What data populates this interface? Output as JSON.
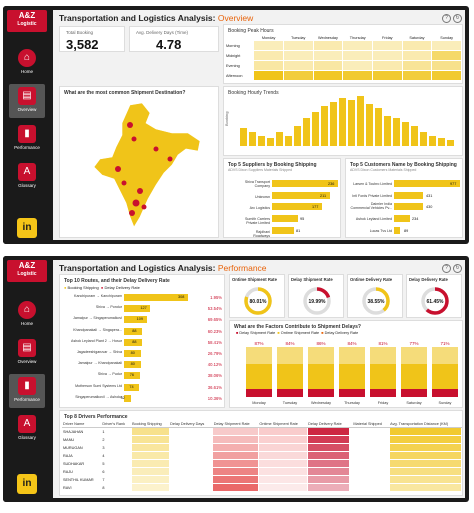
{
  "dash1": {
    "logo": {
      "line1": "A&Z",
      "line2": "Logistic"
    },
    "title": "Transportation and Logistics Analysis:",
    "subtitle": "Overview",
    "nav": [
      {
        "label": "Home",
        "icon": "home-icon",
        "glyph": "⌂"
      },
      {
        "label": "Overview",
        "icon": "overview-icon",
        "glyph": "▤"
      },
      {
        "label": "Performance",
        "icon": "performance-icon",
        "glyph": "▮"
      },
      {
        "label": "Glossary",
        "icon": "glossary-icon",
        "glyph": "A"
      }
    ],
    "linkedin": "in",
    "kpi_total": {
      "label": "Total Booking",
      "value": "3,582"
    },
    "kpi_delivery": {
      "label": "Avg. Delivery Days (Time)",
      "value": "4.78"
    },
    "peak_hours": {
      "title": "Booking Peak Hours",
      "days": [
        "Monday",
        "Tuesday",
        "Wednesday",
        "Thursday",
        "Friday",
        "Saturday",
        "Sunday"
      ],
      "rows": [
        {
          "name": "Morning",
          "levels": [
            0.3,
            0.3,
            0.35,
            0.3,
            0.3,
            0.35,
            0.3
          ]
        },
        {
          "name": "Midnight",
          "levels": [
            0.35,
            0.3,
            0.3,
            0.3,
            0.3,
            0.35,
            0.65
          ]
        },
        {
          "name": "Evening",
          "levels": [
            0.4,
            0.35,
            0.4,
            0.3,
            0.35,
            0.45,
            0.5
          ]
        },
        {
          "name": "Afternoon",
          "levels": [
            1,
            0.85,
            0.95,
            0.9,
            0.9,
            0.85,
            0.9
          ]
        }
      ]
    },
    "map": {
      "title": "What are the most common Shipment Destination?"
    },
    "booking_trends": {
      "title": "Booking Hourly Trends",
      "ylabel": "Booking"
    },
    "suppliers": {
      "title": "Top 5 Suppliers by Booking Shipping",
      "subtitle": "ADVS Dixon Suppliers Materials Shipped"
    },
    "customers": {
      "title": "Top 5 Customers Name by Booking Shipping",
      "subtitle": "ADVS Dixon Customers Materials Shipped"
    }
  },
  "dash2": {
    "logo": {
      "line1": "A&Z",
      "line2": "Logistic"
    },
    "title": "Transportation and Logistics Analysis:",
    "subtitle": "Performance",
    "nav": [
      {
        "label": "Home",
        "icon": "home-icon",
        "glyph": "⌂"
      },
      {
        "label": "Overview",
        "icon": "overview-icon",
        "glyph": "▤"
      },
      {
        "label": "Performance",
        "icon": "performance-icon",
        "glyph": "▮"
      },
      {
        "label": "Glossary",
        "icon": "glossary-icon",
        "glyph": "A"
      }
    ],
    "linkedin": "in",
    "routes": {
      "title": "Top 10 Routes, and their Delay Delivery Rate",
      "legend": [
        "Booking Shipping",
        "Delay Delivery Rate"
      ],
      "rows": [
        {
          "route": "Kanchipuram → Kanchipuram",
          "count": 308,
          "rate": "1.95%"
        },
        {
          "route": "Shiva → Pondur",
          "count": 127,
          "rate": "53.54%"
        },
        {
          "route": "Jamalpur → Singaperumalkovi",
          "count": 109,
          "rate": "69.65%"
        },
        {
          "route": "Khandpanakali → Singapera...",
          "count": 88,
          "rate": "60.23%"
        },
        {
          "route": "Ashok Leyland Plant 2 → Hosur",
          "count": 88,
          "rate": "58.41%"
        },
        {
          "route": "Jagadeeshigaruvar → Shiva",
          "count": 80,
          "rate": "26.79%"
        },
        {
          "route": "Jamalpur → Khandpanakali",
          "count": 80,
          "rate": "40.12%"
        },
        {
          "route": "Shiva → Pudur",
          "count": 76,
          "rate": "38.06%"
        },
        {
          "route": "Motherson Sumi Systems Ltd",
          "count": 74,
          "rate": "36.61%"
        },
        {
          "route": "Singaperumalkovil → Ashoka",
          "count": 32,
          "rate": "10.36%"
        }
      ]
    },
    "rings": [
      {
        "label": "Ontime Shipment Rate",
        "value": "80.01%",
        "frac": 0.8001
      },
      {
        "label": "Delay Shipment Rate",
        "value": "19.99%",
        "frac": 0.1999
      },
      {
        "label": "Ontime Delivery Rate",
        "value": "38.55%",
        "frac": 0.3855
      },
      {
        "label": "Delay Delivery Rate",
        "value": "61.45%",
        "frac": 0.6145
      }
    ],
    "factors": {
      "title": "What are the Factors Contribute to Shipment Delays?",
      "legend": [
        "Delay Shipment Rate",
        "Ontime Shipment Rate",
        "Delay Delivery Rate"
      ],
      "cols": [
        {
          "day": "Monday",
          "top": "87%",
          "ontime": 0.87
        },
        {
          "day": "Tuesday",
          "top": "84%",
          "ontime": 0.84
        },
        {
          "day": "Wednesday",
          "top": "86%",
          "ontime": 0.86
        },
        {
          "day": "Thursday",
          "top": "84%",
          "ontime": 0.84
        },
        {
          "day": "Friday",
          "top": "81%",
          "ontime": 0.81
        },
        {
          "day": "Saturday",
          "top": "77%",
          "ontime": 0.77
        },
        {
          "day": "Sunday",
          "top": "71%",
          "ontime": 0.71
        }
      ]
    },
    "drivers": {
      "title": "Top 8 Drivers Performance",
      "headers": [
        "Driver Name",
        "Driver's Rank",
        "Booking Shipping",
        "Delay Delivery Days",
        "Delay Shipment Rate",
        "Ontime Shipment Rate",
        "Delay Delivery Rate",
        "",
        "Material Shipped",
        "Avg. Transportation Distance (KM)"
      ],
      "rows": [
        {
          "name": "SHAJAHAN",
          "rank": "1"
        },
        {
          "name": "MANU",
          "rank": "2"
        },
        {
          "name": "MURUGAN",
          "rank": "3"
        },
        {
          "name": "RAJA",
          "rank": "4"
        },
        {
          "name": "SUDHAKAR",
          "rank": "5"
        },
        {
          "name": "RAJU",
          "rank": "6"
        },
        {
          "name": "SENTHIL KUMAR",
          "rank": "7"
        },
        {
          "name": "RAVI",
          "rank": "8"
        }
      ]
    }
  }
}
